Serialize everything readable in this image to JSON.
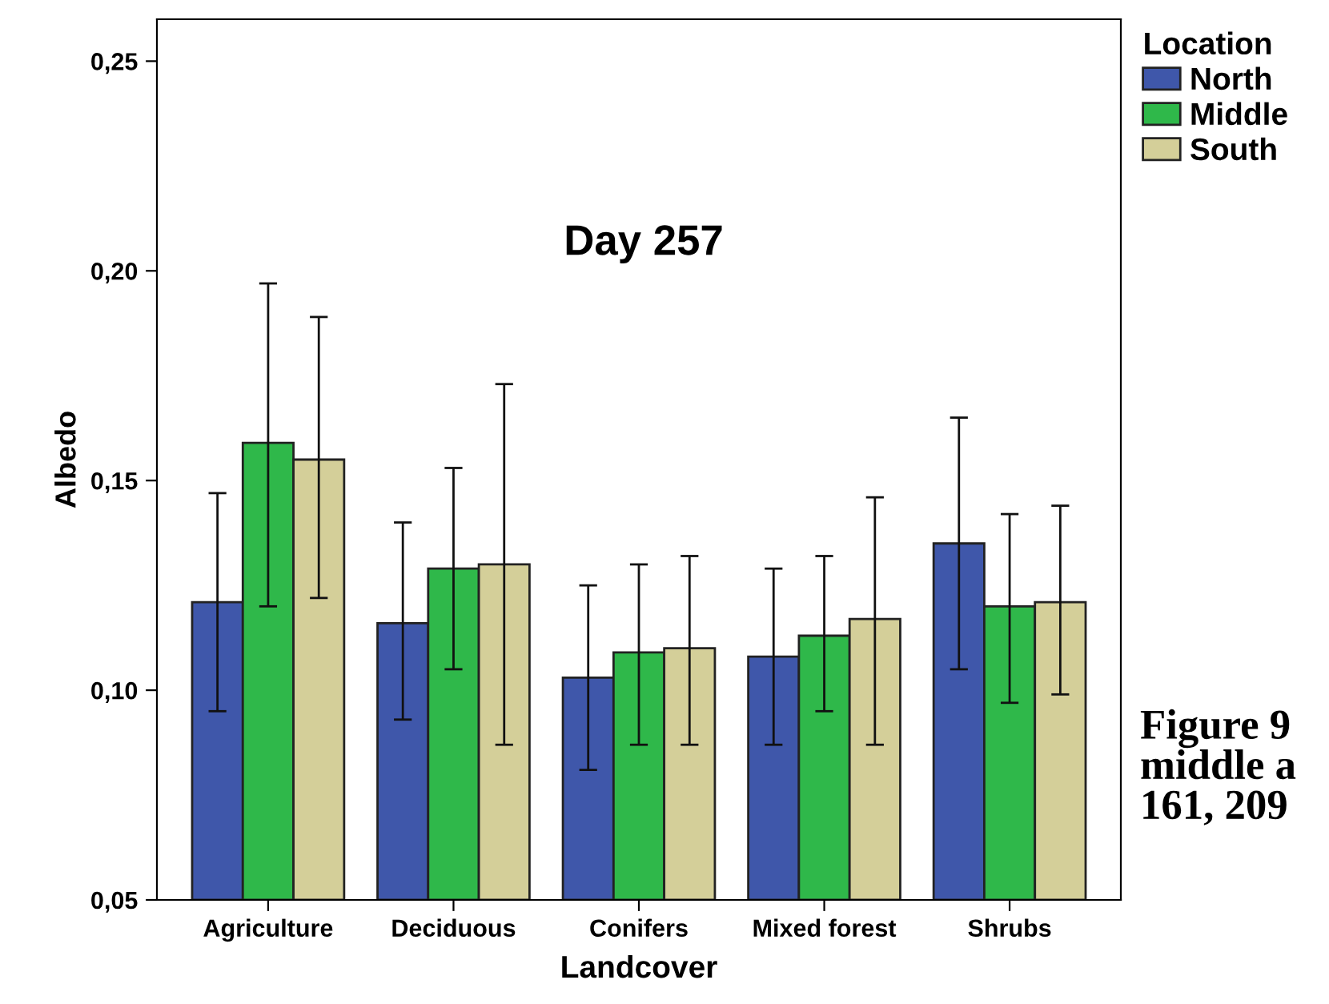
{
  "chart_data": {
    "type": "bar",
    "title": "Day 257",
    "xlabel": "Landcover",
    "ylabel": "Albedo",
    "legend_title": "Location",
    "categories": [
      "Agriculture",
      "Deciduous",
      "Conifers",
      "Mixed forest",
      "Shrubs"
    ],
    "series": [
      {
        "name": "North",
        "color": "#3f57aa",
        "values": [
          0.121,
          0.116,
          0.103,
          0.108,
          0.135
        ],
        "errors": [
          [
            0.095,
            0.147
          ],
          [
            0.093,
            0.14
          ],
          [
            0.081,
            0.125
          ],
          [
            0.087,
            0.129
          ],
          [
            0.105,
            0.165
          ]
        ]
      },
      {
        "name": "Middle",
        "color": "#2fb84a",
        "values": [
          0.159,
          0.129,
          0.109,
          0.113,
          0.12
        ],
        "errors": [
          [
            0.12,
            0.197
          ],
          [
            0.105,
            0.153
          ],
          [
            0.087,
            0.13
          ],
          [
            0.095,
            0.132
          ],
          [
            0.097,
            0.142
          ]
        ]
      },
      {
        "name": "South",
        "color": "#d4cf99",
        "values": [
          0.155,
          0.13,
          0.11,
          0.117,
          0.121
        ],
        "errors": [
          [
            0.122,
            0.189
          ],
          [
            0.087,
            0.173
          ],
          [
            0.087,
            0.132
          ],
          [
            0.087,
            0.146
          ],
          [
            0.099,
            0.144
          ]
        ]
      }
    ],
    "ylim": [
      0.05,
      0.26
    ],
    "yticks": [
      {
        "value": 0.05,
        "label": "0,05"
      },
      {
        "value": 0.1,
        "label": "0,10"
      },
      {
        "value": 0.15,
        "label": "0,15"
      },
      {
        "value": 0.2,
        "label": "0,20"
      },
      {
        "value": 0.25,
        "label": "0,25"
      }
    ],
    "grid": false,
    "legend": "top right",
    "annotations": [
      "Figure 9",
      "middle a",
      "161, 209"
    ]
  }
}
